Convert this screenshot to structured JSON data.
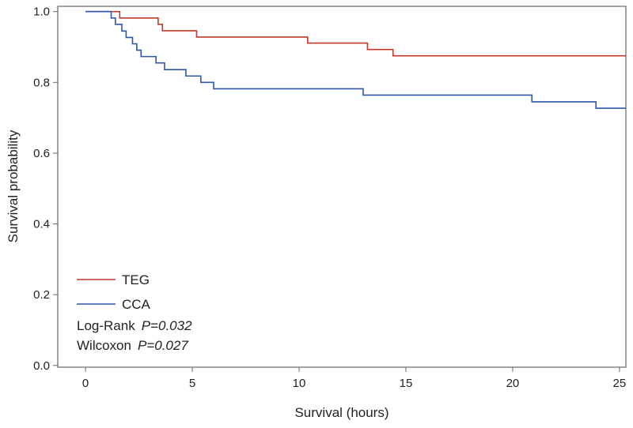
{
  "chart_data": {
    "type": "line",
    "subtype": "kaplan-meier-step",
    "xlabel": "Survival (hours)",
    "ylabel": "Survival probability",
    "xlim": [
      -1.3,
      25.3
    ],
    "ylim": [
      -0.005,
      1.015
    ],
    "xticks": [
      0,
      5,
      10,
      15,
      20,
      25
    ],
    "xtick_labels": [
      "0",
      "5",
      "10",
      "15",
      "20",
      "25"
    ],
    "yticks": [
      0.0,
      0.2,
      0.4,
      0.6,
      0.8,
      1.0
    ],
    "ytick_labels": [
      "0.0",
      "0.2",
      "0.4",
      "0.6",
      "0.8",
      "1.0"
    ],
    "legend_position": "bottom-left",
    "series": [
      {
        "name": "TEG",
        "color": "#c0392b",
        "points": [
          [
            0,
            1.0
          ],
          [
            1.6,
            1.0
          ],
          [
            1.6,
            0.982
          ],
          [
            3.4,
            0.982
          ],
          [
            3.4,
            0.964
          ],
          [
            3.6,
            0.964
          ],
          [
            3.6,
            0.946
          ],
          [
            5.2,
            0.946
          ],
          [
            5.2,
            0.928
          ],
          [
            10.4,
            0.928
          ],
          [
            10.4,
            0.911
          ],
          [
            13.2,
            0.911
          ],
          [
            13.2,
            0.893
          ],
          [
            14.4,
            0.893
          ],
          [
            14.4,
            0.875
          ],
          [
            25.3,
            0.875
          ]
        ]
      },
      {
        "name": "CCA",
        "color": "#2e55a8",
        "points": [
          [
            0,
            1.0
          ],
          [
            1.2,
            1.0
          ],
          [
            1.2,
            0.982
          ],
          [
            1.4,
            0.982
          ],
          [
            1.4,
            0.964
          ],
          [
            1.7,
            0.964
          ],
          [
            1.7,
            0.945
          ],
          [
            1.9,
            0.945
          ],
          [
            1.9,
            0.927
          ],
          [
            2.2,
            0.927
          ],
          [
            2.2,
            0.909
          ],
          [
            2.4,
            0.909
          ],
          [
            2.4,
            0.891
          ],
          [
            2.6,
            0.891
          ],
          [
            2.6,
            0.873
          ],
          [
            3.3,
            0.873
          ],
          [
            3.3,
            0.855
          ],
          [
            3.7,
            0.855
          ],
          [
            3.7,
            0.836
          ],
          [
            4.7,
            0.836
          ],
          [
            4.7,
            0.818
          ],
          [
            5.4,
            0.818
          ],
          [
            5.4,
            0.8
          ],
          [
            6.0,
            0.8
          ],
          [
            6.0,
            0.782
          ],
          [
            13.0,
            0.782
          ],
          [
            13.0,
            0.764
          ],
          [
            20.9,
            0.764
          ],
          [
            20.9,
            0.745
          ],
          [
            23.9,
            0.745
          ],
          [
            23.9,
            0.727
          ],
          [
            25.3,
            0.727
          ]
        ]
      }
    ],
    "annotations": [
      {
        "label": "Log-Rank",
        "value": "P=0.032"
      },
      {
        "label": "Wilcoxon",
        "value": "P=0.027"
      }
    ]
  }
}
